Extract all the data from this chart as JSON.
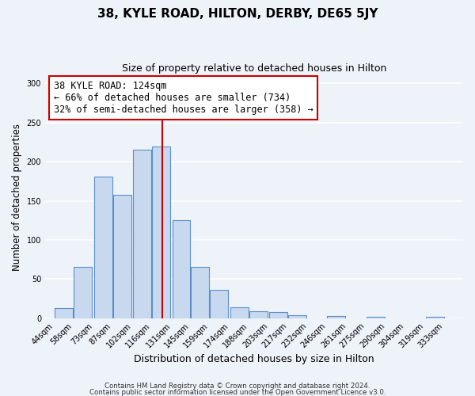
{
  "title": "38, KYLE ROAD, HILTON, DERBY, DE65 5JY",
  "subtitle": "Size of property relative to detached houses in Hilton",
  "xlabel": "Distribution of detached houses by size in Hilton",
  "ylabel": "Number of detached properties",
  "bar_left_edges": [
    44,
    58,
    73,
    87,
    102,
    116,
    131,
    145,
    159,
    174,
    188,
    203,
    217,
    232,
    246,
    261,
    275,
    290,
    304,
    319
  ],
  "bar_heights": [
    13,
    65,
    181,
    158,
    215,
    219,
    125,
    65,
    36,
    14,
    9,
    8,
    4,
    0,
    3,
    0,
    2,
    0,
    0,
    2
  ],
  "bin_width": 14,
  "x_tick_labels": [
    "44sqm",
    "58sqm",
    "73sqm",
    "87sqm",
    "102sqm",
    "116sqm",
    "131sqm",
    "145sqm",
    "159sqm",
    "174sqm",
    "188sqm",
    "203sqm",
    "217sqm",
    "232sqm",
    "246sqm",
    "261sqm",
    "275sqm",
    "290sqm",
    "304sqm",
    "319sqm",
    "333sqm"
  ],
  "x_tick_positions": [
    44,
    58,
    73,
    87,
    102,
    116,
    131,
    145,
    159,
    174,
    188,
    203,
    217,
    232,
    246,
    261,
    275,
    290,
    304,
    319,
    333
  ],
  "ylim": [
    0,
    310
  ],
  "yticks": [
    0,
    50,
    100,
    150,
    200,
    250,
    300
  ],
  "bar_color": "#c8d9ef",
  "bar_edge_color": "#5b8fc9",
  "vline_x": 124,
  "vline_color": "#cc0000",
  "annotation_line1": "38 KYLE ROAD: 124sqm",
  "annotation_line2": "← 66% of detached houses are smaller (734)",
  "annotation_line3": "32% of semi-detached houses are larger (358) →",
  "footer_line1": "Contains HM Land Registry data © Crown copyright and database right 2024.",
  "footer_line2": "Contains public sector information licensed under the Open Government Licence v3.0.",
  "background_color": "#eef2f9",
  "plot_bg_color": "#eef2f9",
  "grid_color": "#ffffff"
}
